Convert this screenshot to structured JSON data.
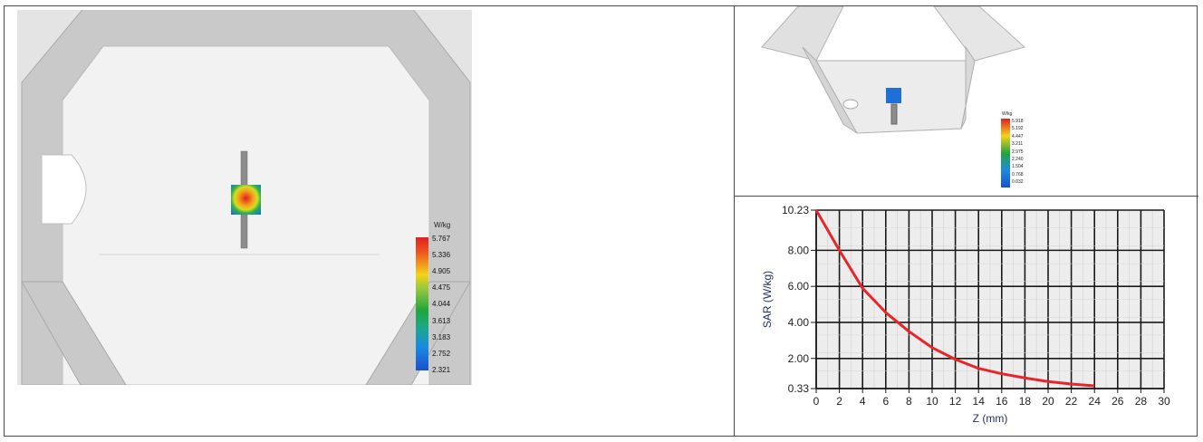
{
  "left_image": {
    "scale_unit": "W/kg",
    "scale_values": [
      "5.767",
      "5.336",
      "4.905",
      "4.475",
      "4.044",
      "3.613",
      "3.183",
      "2.752",
      "2.321"
    ]
  },
  "top_right_image": {
    "scale_unit": "W/kg",
    "scale_values": [
      "5.918",
      "5.192",
      "4.447",
      "3.211",
      "2.975",
      "2.240",
      "1.504",
      "0.768",
      "0.032"
    ]
  },
  "chart_data": {
    "type": "line",
    "title": "",
    "xlabel": "Z (mm)",
    "ylabel": "SAR (W/kg)",
    "xlim": [
      0,
      30
    ],
    "ylim": [
      0.33,
      10.23
    ],
    "x_ticks": [
      "0",
      "2",
      "4",
      "6",
      "8",
      "10",
      "12",
      "14",
      "16",
      "18",
      "20",
      "22",
      "24",
      "26",
      "28",
      "30"
    ],
    "y_ticks": [
      "10.23",
      "8.00",
      "6.00",
      "4.00",
      "2.00",
      "0.33"
    ],
    "grid": true,
    "series": [
      {
        "color": "#e8262a",
        "x": [
          0,
          2,
          4,
          6,
          8,
          10,
          12,
          14,
          16,
          18,
          20,
          22,
          24
        ],
        "y": [
          10.23,
          8.0,
          5.9,
          4.55,
          3.5,
          2.6,
          1.95,
          1.45,
          1.15,
          0.92,
          0.72,
          0.58,
          0.48
        ]
      }
    ]
  }
}
